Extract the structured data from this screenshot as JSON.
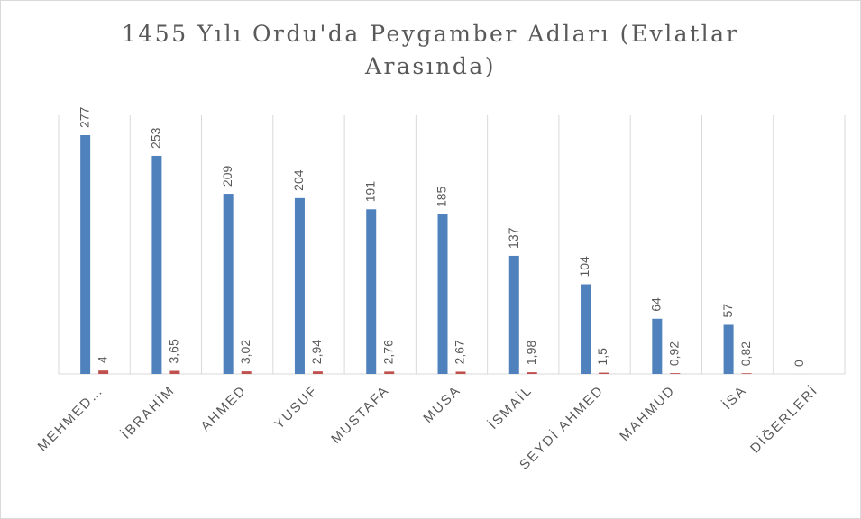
{
  "chart_data": {
    "type": "bar",
    "title": "1455 Yılı Ordu'da Peygamber Adları (Evlatlar Arasında)",
    "categories": [
      "MEHMED…",
      "İBRAHİM",
      "AHMED",
      "YUSUF",
      "MUSTAFA",
      "MUSA",
      "İSMAİL",
      "SEYDİ AHMED",
      "MAHMUD",
      "İSA",
      "DİĞERLERİ"
    ],
    "series": [
      {
        "color": "#4f81bd",
        "values": [
          277,
          253,
          209,
          204,
          191,
          185,
          137,
          104,
          64,
          57,
          0
        ]
      },
      {
        "color": "#c0504d",
        "values": [
          4,
          3.65,
          3.02,
          2.94,
          2.76,
          2.67,
          1.98,
          1.5,
          0.92,
          0.82,
          null
        ],
        "value_labels": [
          "4",
          "3,65",
          "3,02",
          "2,94",
          "2,76",
          "2,67",
          "1,98",
          "1,5",
          "0,92",
          "0,82",
          null
        ]
      }
    ],
    "ylim": [
      0,
      300
    ],
    "grid": true
  }
}
